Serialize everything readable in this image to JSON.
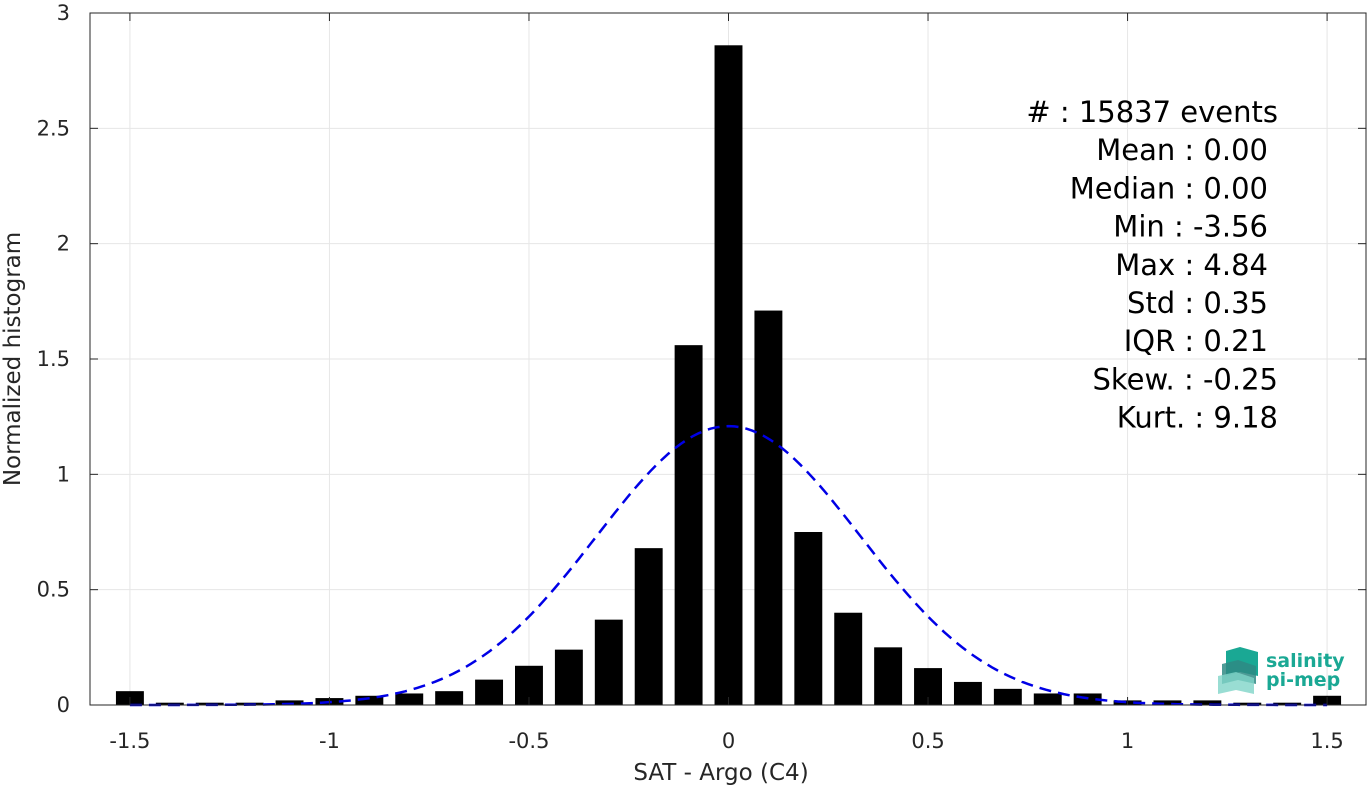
{
  "chart_data": {
    "type": "bar",
    "xlabel": "SAT - Argo (C4)",
    "ylabel": "Normalized histogram",
    "xlim": [
      -1.6,
      1.6
    ],
    "ylim": [
      0,
      3
    ],
    "xticks": [
      -1.5,
      -1,
      -0.5,
      0,
      0.5,
      1,
      1.5
    ],
    "xtick_labels": [
      "-1.5",
      "-1",
      "-0.5",
      "0",
      "0.5",
      "1",
      "1.5"
    ],
    "yticks": [
      0,
      0.5,
      1,
      1.5,
      2,
      2.5,
      3
    ],
    "ytick_labels": [
      "0",
      "0.5",
      "1",
      "1.5",
      "2",
      "2.5",
      "3"
    ],
    "grid": true,
    "bar_width": 0.07,
    "bar_color": "#000000",
    "bins": {
      "x": [
        -1.5,
        -1.4,
        -1.3,
        -1.2,
        -1.1,
        -1.0,
        -0.9,
        -0.8,
        -0.7,
        -0.6,
        -0.5,
        -0.4,
        -0.3,
        -0.2,
        -0.1,
        0.0,
        0.1,
        0.2,
        0.3,
        0.4,
        0.5,
        0.6,
        0.7,
        0.8,
        0.9,
        1.0,
        1.1,
        1.2,
        1.3,
        1.4,
        1.5
      ],
      "values": [
        0.06,
        0.01,
        0.01,
        0.01,
        0.02,
        0.03,
        0.04,
        0.05,
        0.06,
        0.11,
        0.17,
        0.24,
        0.37,
        0.68,
        1.56,
        2.86,
        1.71,
        0.75,
        0.4,
        0.25,
        0.16,
        0.1,
        0.07,
        0.05,
        0.05,
        0.02,
        0.02,
        0.02,
        0.01,
        0.01,
        0.04
      ]
    },
    "gaussian_fit": {
      "mean": 0.0,
      "std": 0.33,
      "color": "#0000e6",
      "style": "dashed",
      "x_range": [
        -1.5,
        1.5
      ]
    },
    "stats": [
      {
        "label": "#  : 15837 events"
      },
      {
        "label": "Mean : 0.00"
      },
      {
        "label": "Median : 0.00"
      },
      {
        "label": "Min : -3.56"
      },
      {
        "label": "Max : 4.84"
      },
      {
        "label": "Std : 0.35"
      },
      {
        "label": "IQR : 0.21"
      },
      {
        "label": "Skew. : -0.25"
      },
      {
        "label": "Kurt. : 9.18"
      }
    ]
  },
  "logo": {
    "line1": "salinity",
    "line2": "pi-mep",
    "colors": [
      "#1aa894",
      "#2f8a84",
      "#7fd4c8"
    ]
  }
}
